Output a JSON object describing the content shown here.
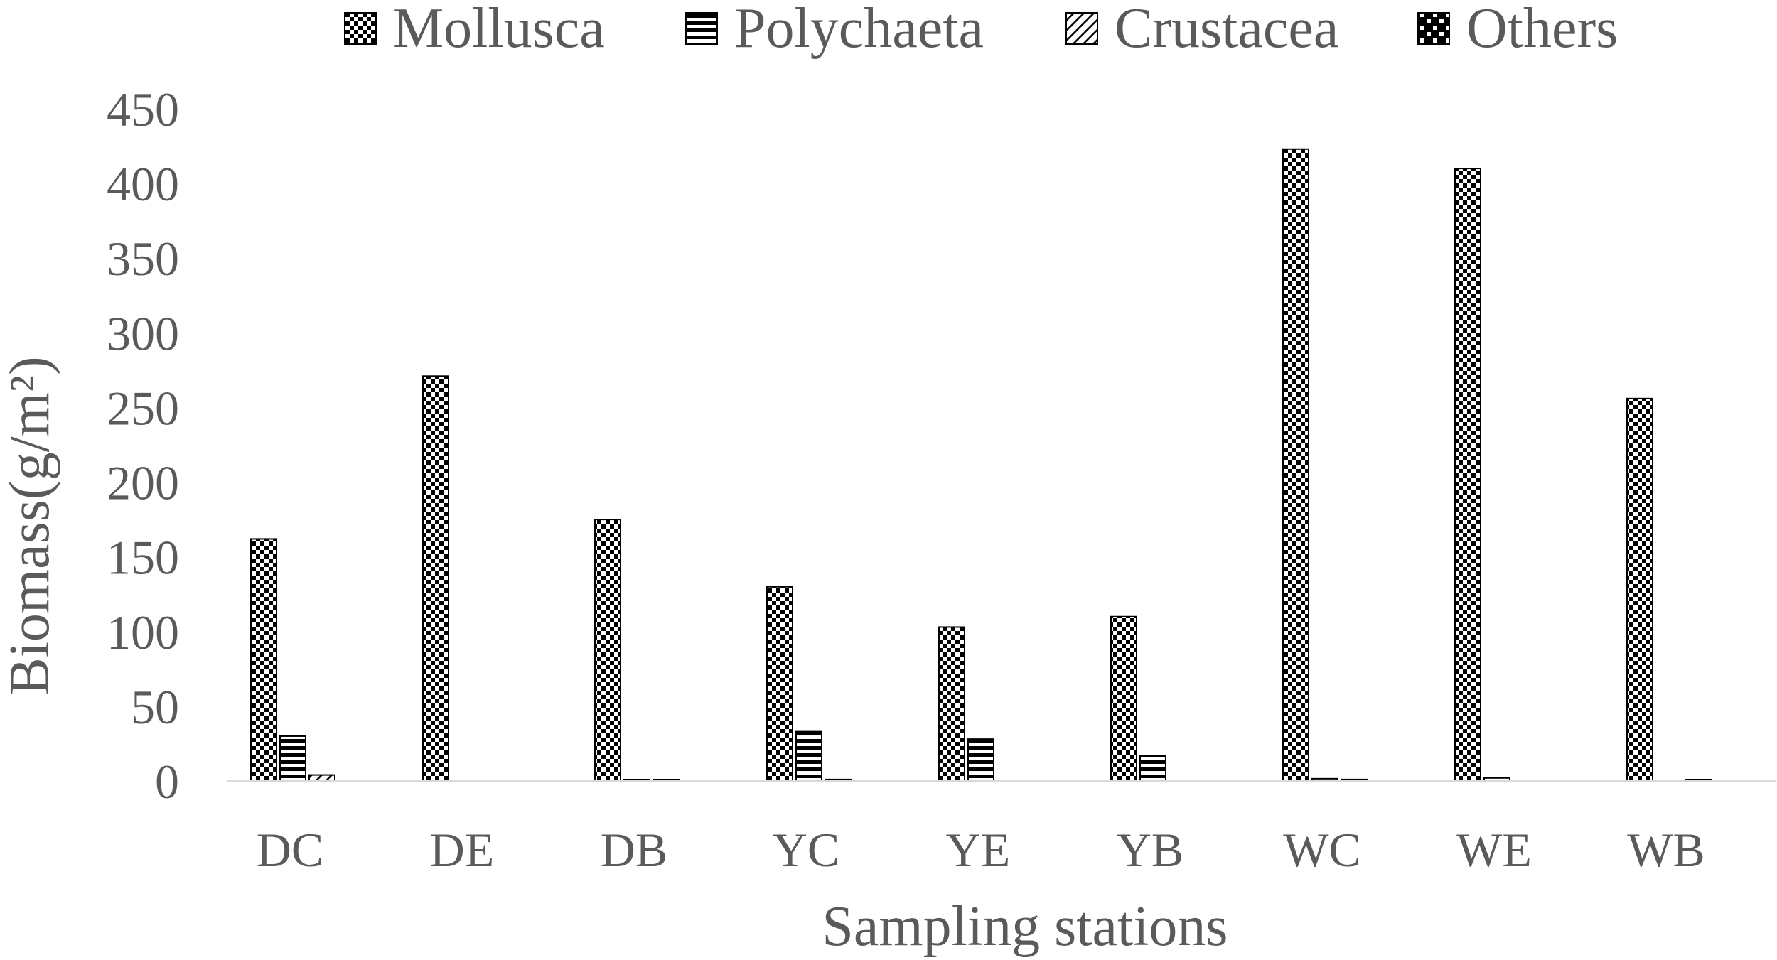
{
  "chart_data": {
    "type": "bar",
    "title": "",
    "xlabel": "Sampling stations",
    "ylabel": "Biomass(g/m²)",
    "ylim": [
      0,
      450
    ],
    "yticks": [
      0,
      50,
      100,
      150,
      200,
      250,
      300,
      350,
      400,
      450
    ],
    "grid": false,
    "legend_position": "top",
    "categories": [
      "DC",
      "DE",
      "DB",
      "YC",
      "YE",
      "YB",
      "WC",
      "WE",
      "WB"
    ],
    "series": [
      {
        "name": "Mollusca",
        "pattern": "checker",
        "values": [
          162,
          271,
          175,
          130,
          103,
          110,
          423,
          410,
          256
        ]
      },
      {
        "name": "Polychaeta",
        "pattern": "hlines",
        "values": [
          30,
          0,
          0.5,
          33,
          28,
          17,
          1.5,
          2,
          0
        ]
      },
      {
        "name": "Crustacea",
        "pattern": "diag",
        "values": [
          4,
          0,
          0.5,
          1,
          0,
          0,
          1,
          0,
          0.5
        ]
      },
      {
        "name": "Others",
        "pattern": "bigchecker",
        "values": [
          0,
          0,
          0,
          0,
          0,
          0,
          0,
          0,
          0
        ]
      }
    ],
    "colors": {
      "text": "#5a5a5a",
      "axis": "#d9d9d9",
      "bar_ink": "#000000",
      "background": "#ffffff"
    }
  }
}
